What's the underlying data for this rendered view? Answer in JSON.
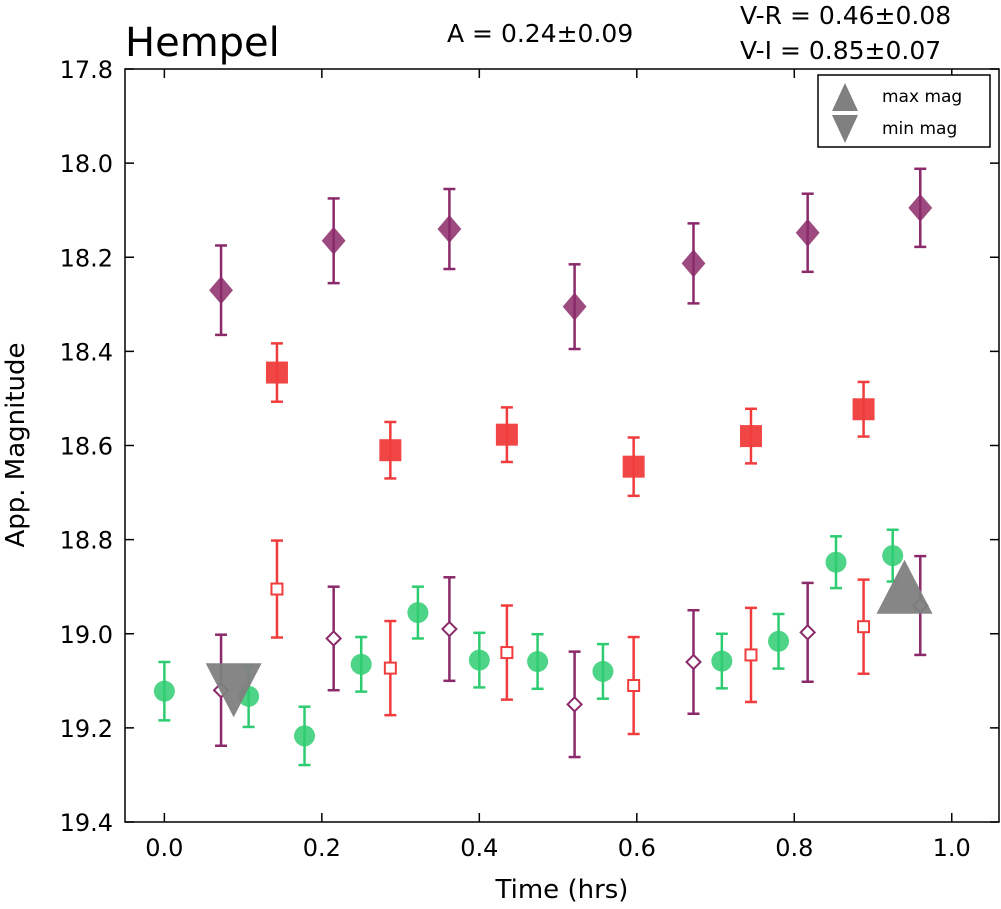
{
  "chart_data": {
    "type": "scatter",
    "title": "Hempel",
    "annotations": {
      "amplitude": "A  = 0.24±0.09",
      "v_minus_r": "V-R = 0.46±0.08",
      "v_minus_i": "V-I  = 0.85±0.07"
    },
    "xlabel": "Time (hrs)",
    "ylabel": "App. Magnitude",
    "xlim": [
      -0.05,
      1.06
    ],
    "ylim": [
      19.4,
      17.8
    ],
    "y_inverted": true,
    "xticks": [
      0.0,
      0.2,
      0.4,
      0.6,
      0.8,
      1.0
    ],
    "xtick_labels": [
      "0.0",
      "0.2",
      "0.4",
      "0.6",
      "0.8",
      "1.0"
    ],
    "yticks": [
      17.8,
      18.0,
      18.2,
      18.4,
      18.6,
      18.8,
      19.0,
      19.2,
      19.4
    ],
    "ytick_labels": [
      "17.8",
      "18.0",
      "18.2",
      "18.4",
      "18.6",
      "18.8",
      "19.0",
      "19.2",
      "19.4"
    ],
    "grid": false,
    "legend": {
      "position": "top-right",
      "entries": [
        {
          "label": "max mag",
          "marker": "triangle-up",
          "color": "#808080"
        },
        {
          "label": "min mag",
          "marker": "triangle-down",
          "color": "#808080"
        }
      ]
    },
    "series": [
      {
        "marker": "diamond-filled",
        "color": "#8b2a6a",
        "points": [
          {
            "x": 0.072,
            "y": 18.27,
            "err": 0.095
          },
          {
            "x": 0.215,
            "y": 18.165,
            "err": 0.09
          },
          {
            "x": 0.362,
            "y": 18.14,
            "err": 0.085
          },
          {
            "x": 0.521,
            "y": 18.305,
            "err": 0.09
          },
          {
            "x": 0.672,
            "y": 18.213,
            "err": 0.085
          },
          {
            "x": 0.817,
            "y": 18.148,
            "err": 0.083
          },
          {
            "x": 0.96,
            "y": 18.095,
            "err": 0.083
          }
        ]
      },
      {
        "marker": "square-filled",
        "color": "#f03c3c",
        "points": [
          {
            "x": 0.143,
            "y": 18.445,
            "err": 0.062
          },
          {
            "x": 0.287,
            "y": 18.61,
            "err": 0.06
          },
          {
            "x": 0.435,
            "y": 18.577,
            "err": 0.058
          },
          {
            "x": 0.596,
            "y": 18.645,
            "err": 0.062
          },
          {
            "x": 0.745,
            "y": 18.58,
            "err": 0.058
          },
          {
            "x": 0.888,
            "y": 18.523,
            "err": 0.058
          }
        ]
      },
      {
        "marker": "circle-filled",
        "color": "#2ecc71",
        "points": [
          {
            "x": 0.0,
            "y": 19.122,
            "err": 0.062
          },
          {
            "x": 0.107,
            "y": 19.133,
            "err": 0.065
          },
          {
            "x": 0.178,
            "y": 19.217,
            "err": 0.062
          },
          {
            "x": 0.25,
            "y": 19.065,
            "err": 0.058
          },
          {
            "x": 0.322,
            "y": 18.955,
            "err": 0.055
          },
          {
            "x": 0.4,
            "y": 19.056,
            "err": 0.058
          },
          {
            "x": 0.474,
            "y": 19.059,
            "err": 0.058
          },
          {
            "x": 0.557,
            "y": 19.08,
            "err": 0.058
          },
          {
            "x": 0.708,
            "y": 19.058,
            "err": 0.058
          },
          {
            "x": 0.78,
            "y": 19.016,
            "err": 0.058
          },
          {
            "x": 0.853,
            "y": 18.848,
            "err": 0.055
          },
          {
            "x": 0.925,
            "y": 18.834,
            "err": 0.055
          }
        ]
      },
      {
        "marker": "diamond-open",
        "color": "#8b2a6a",
        "points": [
          {
            "x": 0.072,
            "y": 19.12,
            "err": 0.118
          },
          {
            "x": 0.215,
            "y": 19.01,
            "err": 0.11
          },
          {
            "x": 0.362,
            "y": 18.99,
            "err": 0.11
          },
          {
            "x": 0.521,
            "y": 19.15,
            "err": 0.112
          },
          {
            "x": 0.672,
            "y": 19.06,
            "err": 0.11
          },
          {
            "x": 0.817,
            "y": 18.997,
            "err": 0.105
          },
          {
            "x": 0.96,
            "y": 18.94,
            "err": 0.105
          }
        ]
      },
      {
        "marker": "square-open",
        "color": "#f03c3c",
        "points": [
          {
            "x": 0.143,
            "y": 18.905,
            "err": 0.103
          },
          {
            "x": 0.287,
            "y": 19.073,
            "err": 0.1
          },
          {
            "x": 0.435,
            "y": 19.04,
            "err": 0.1
          },
          {
            "x": 0.596,
            "y": 19.11,
            "err": 0.103
          },
          {
            "x": 0.745,
            "y": 19.045,
            "err": 0.1
          },
          {
            "x": 0.888,
            "y": 18.985,
            "err": 0.1
          }
        ]
      }
    ],
    "extrema": [
      {
        "type": "max",
        "x": 0.94,
        "y": 18.9,
        "marker": "triangle-up",
        "color": "#808080"
      },
      {
        "type": "min",
        "x": 0.088,
        "y": 19.12,
        "marker": "triangle-down",
        "color": "#808080"
      }
    ]
  }
}
